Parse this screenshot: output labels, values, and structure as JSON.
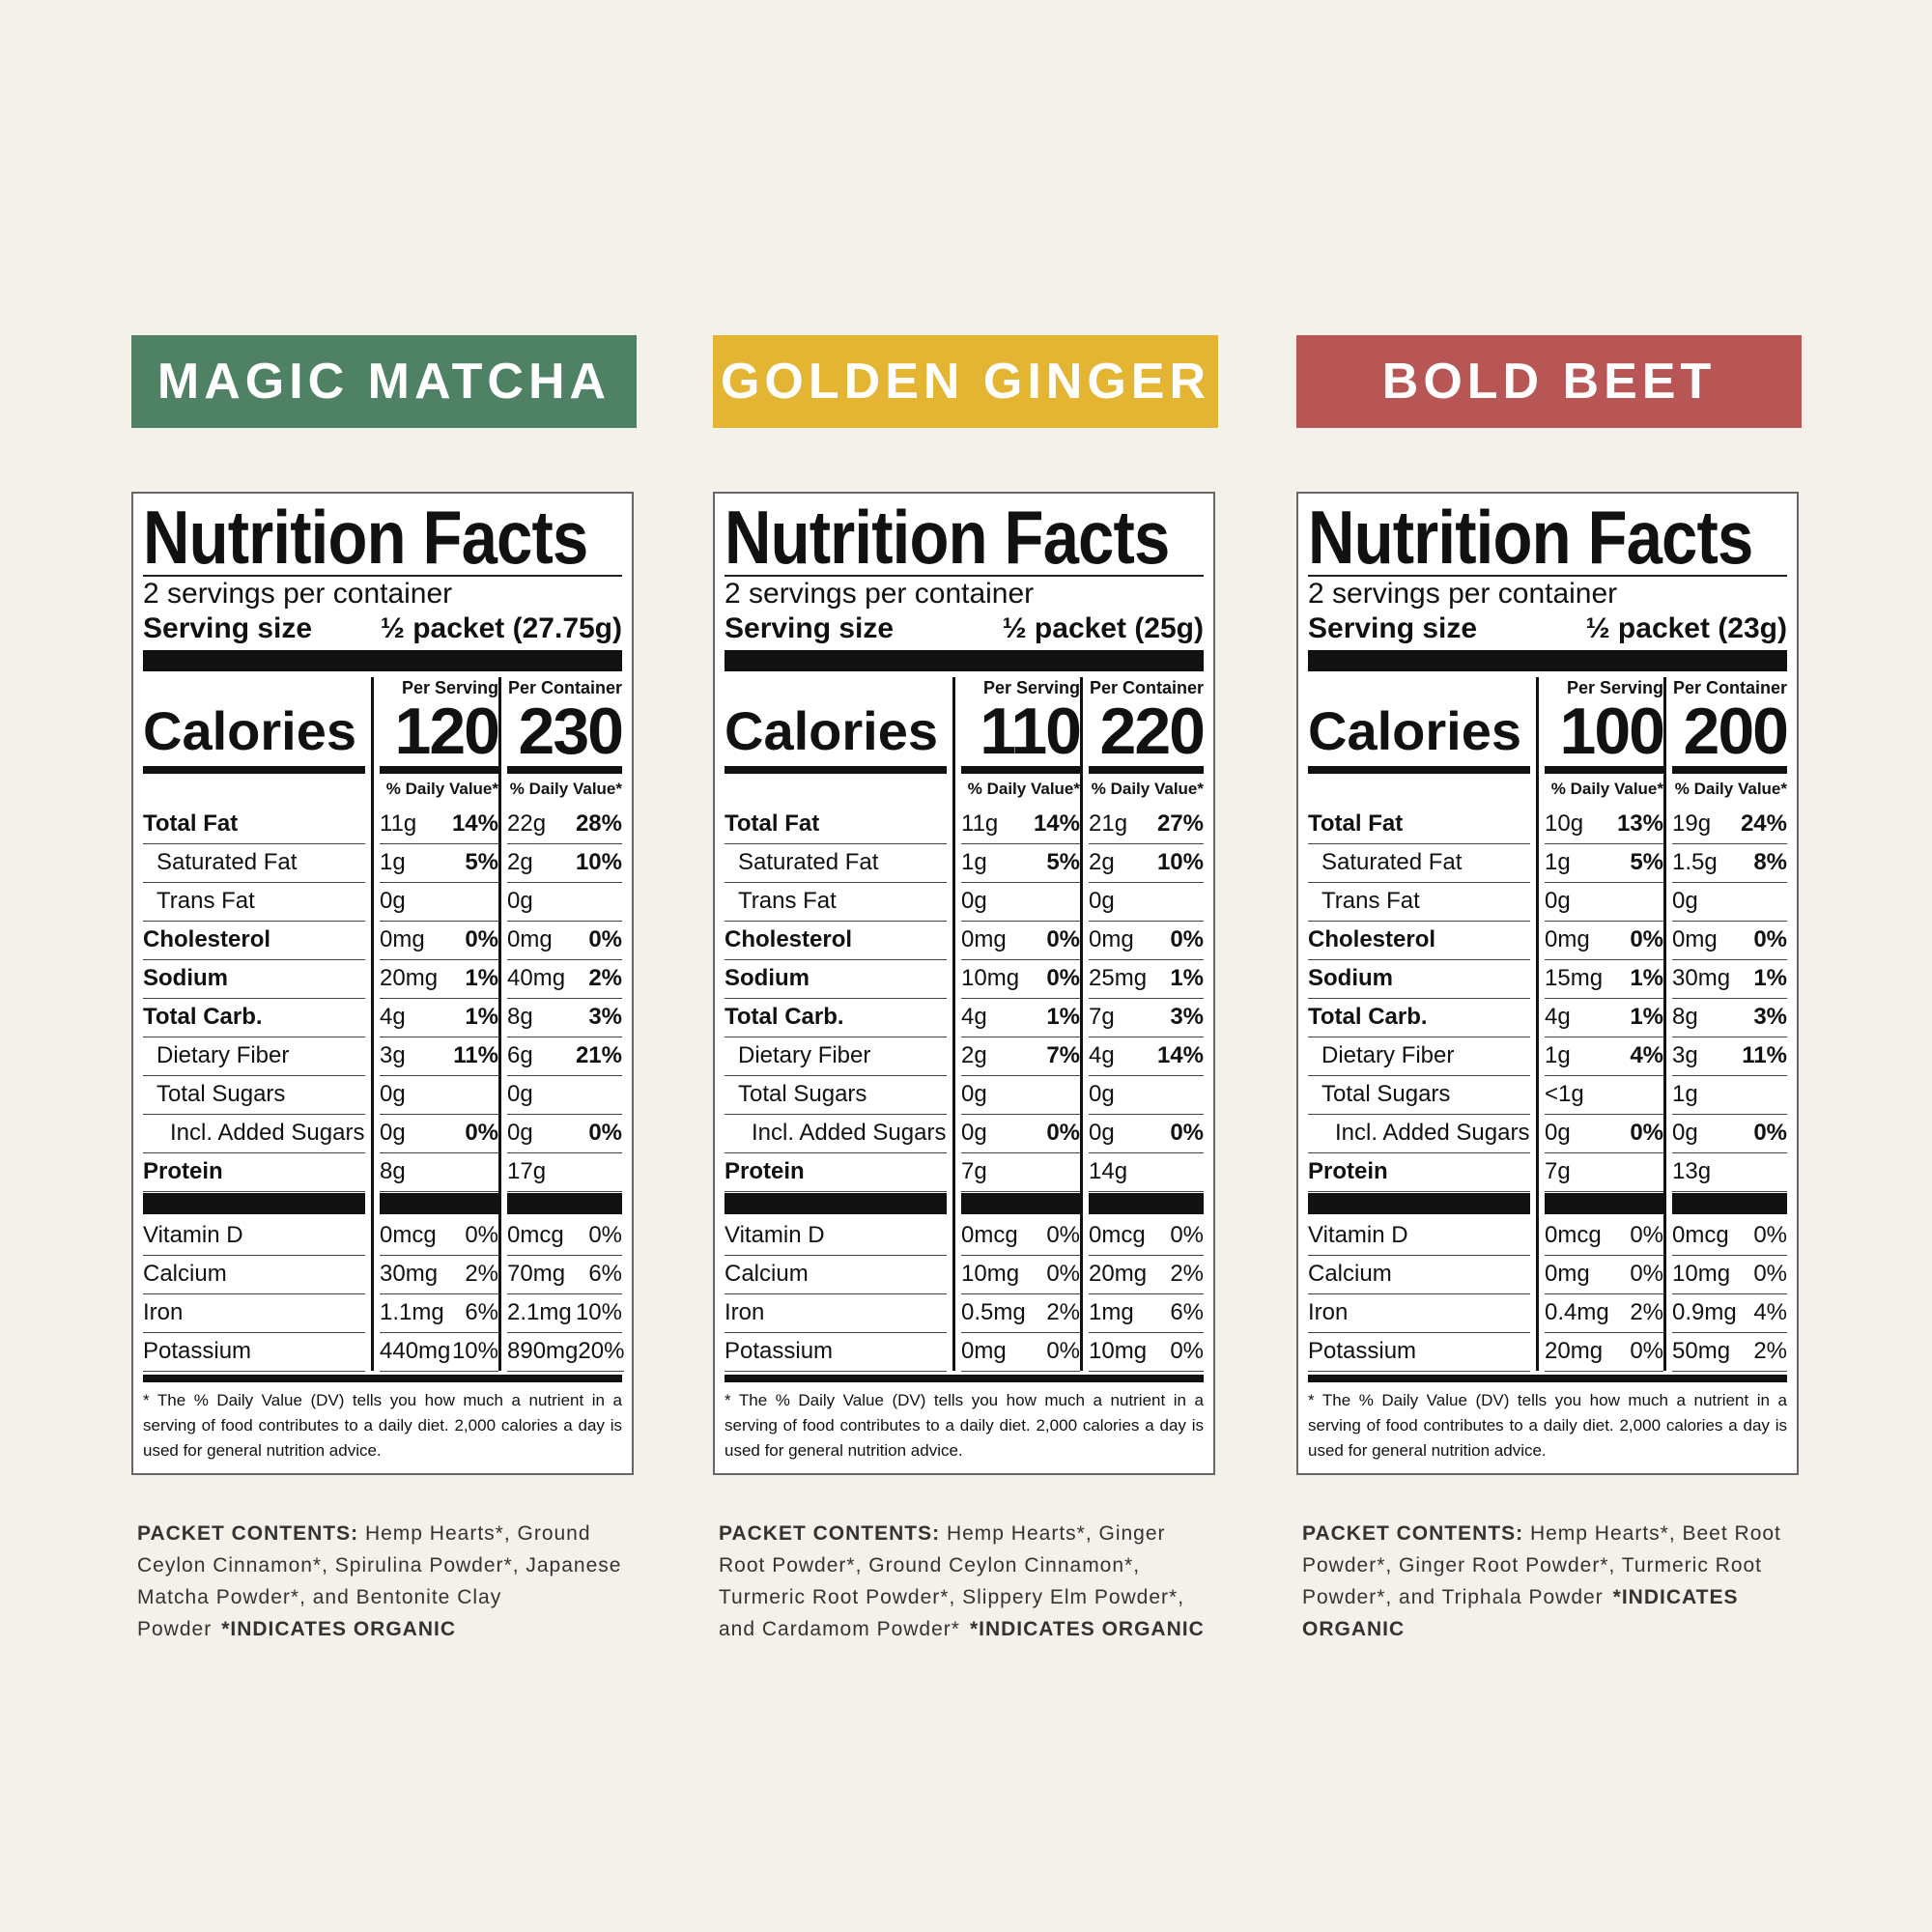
{
  "panels": [
    {
      "title": "MAGIC MATCHA",
      "label": {
        "heading": "Nutrition Facts",
        "servings": "2 servings per container",
        "serving_size_label": "Serving size",
        "serving_size": "½ packet (27.75g)",
        "columns": [
          "Per Serving",
          "Per Container"
        ],
        "calories_label": "Calories",
        "calories": [
          "120",
          "230"
        ],
        "daily_value_header": "% Daily Value*",
        "nutrients": [
          {
            "name": "Total Fat",
            "per_serving": {
              "amount": "11g",
              "dv": "14%"
            },
            "per_container": {
              "amount": "22g",
              "dv": "28%"
            }
          },
          {
            "name": "Saturated Fat",
            "per_serving": {
              "amount": "1g",
              "dv": "5%"
            },
            "per_container": {
              "amount": "2g",
              "dv": "10%"
            }
          },
          {
            "name": "Trans Fat",
            "per_serving": {
              "amount": "0g"
            },
            "per_container": {
              "amount": "0g"
            }
          },
          {
            "name": "Cholesterol",
            "per_serving": {
              "amount": "0mg",
              "dv": "0%"
            },
            "per_container": {
              "amount": "0mg",
              "dv": "0%"
            }
          },
          {
            "name": "Sodium",
            "per_serving": {
              "amount": "20mg",
              "dv": "1%"
            },
            "per_container": {
              "amount": "40mg",
              "dv": "2%"
            }
          },
          {
            "name": "Total Carb.",
            "per_serving": {
              "amount": "4g",
              "dv": "1%"
            },
            "per_container": {
              "amount": "8g",
              "dv": "3%"
            }
          },
          {
            "name": "Dietary Fiber",
            "per_serving": {
              "amount": "3g",
              "dv": "11%"
            },
            "per_container": {
              "amount": "6g",
              "dv": "21%"
            }
          },
          {
            "name": "Total Sugars",
            "per_serving": {
              "amount": "0g"
            },
            "per_container": {
              "amount": "0g"
            }
          },
          {
            "name": "Incl. Added Sugars",
            "per_serving": {
              "amount": "0g",
              "dv": "0%"
            },
            "per_container": {
              "amount": "0g",
              "dv": "0%"
            }
          },
          {
            "name": "Protein",
            "per_serving": {
              "amount": "8g"
            },
            "per_container": {
              "amount": "17g"
            }
          }
        ],
        "vitamins": [
          {
            "name": "Vitamin D",
            "per_serving": {
              "amount": "0mcg",
              "dv": "0%"
            },
            "per_container": {
              "amount": "0mcg",
              "dv": "0%"
            }
          },
          {
            "name": "Calcium",
            "per_serving": {
              "amount": "30mg",
              "dv": "2%"
            },
            "per_container": {
              "amount": "70mg",
              "dv": "6%"
            }
          },
          {
            "name": "Iron",
            "per_serving": {
              "amount": "1.1mg",
              "dv": "6%"
            },
            "per_container": {
              "amount": "2.1mg",
              "dv": "10%"
            }
          },
          {
            "name": "Potassium",
            "per_serving": {
              "amount": "440mg",
              "dv": "10%"
            },
            "per_container": {
              "amount": "890mg",
              "dv": "20%"
            }
          }
        ],
        "footnote": "* The % Daily Value (DV) tells you how much a nutrient in a serving of food contributes to a daily diet. 2,000 calories a day is used for general nutrition advice."
      },
      "contents": {
        "label": "PACKET CONTENTS:",
        "text": "Hemp Hearts*, Ground Ceylon Cinnamon*, Spirulina Powder*, Japanese Matcha Powder*, and Bentonite Clay Powder",
        "note": "*INDICATES ORGANIC"
      }
    },
    {
      "title": "GOLDEN GINGER",
      "label": {
        "heading": "Nutrition Facts",
        "servings": "2 servings per container",
        "serving_size_label": "Serving size",
        "serving_size": "½ packet (25g)",
        "columns": [
          "Per Serving",
          "Per Container"
        ],
        "calories_label": "Calories",
        "calories": [
          "110",
          "220"
        ],
        "daily_value_header": "% Daily Value*",
        "nutrients": [
          {
            "name": "Total Fat",
            "per_serving": {
              "amount": "11g",
              "dv": "14%"
            },
            "per_container": {
              "amount": "21g",
              "dv": "27%"
            }
          },
          {
            "name": "Saturated Fat",
            "per_serving": {
              "amount": "1g",
              "dv": "5%"
            },
            "per_container": {
              "amount": "2g",
              "dv": "10%"
            }
          },
          {
            "name": "Trans Fat",
            "per_serving": {
              "amount": "0g"
            },
            "per_container": {
              "amount": "0g"
            }
          },
          {
            "name": "Cholesterol",
            "per_serving": {
              "amount": "0mg",
              "dv": "0%"
            },
            "per_container": {
              "amount": "0mg",
              "dv": "0%"
            }
          },
          {
            "name": "Sodium",
            "per_serving": {
              "amount": "10mg",
              "dv": "0%"
            },
            "per_container": {
              "amount": "25mg",
              "dv": "1%"
            }
          },
          {
            "name": "Total Carb.",
            "per_serving": {
              "amount": "4g",
              "dv": "1%"
            },
            "per_container": {
              "amount": "7g",
              "dv": "3%"
            }
          },
          {
            "name": "Dietary Fiber",
            "per_serving": {
              "amount": "2g",
              "dv": "7%"
            },
            "per_container": {
              "amount": "4g",
              "dv": "14%"
            }
          },
          {
            "name": "Total Sugars",
            "per_serving": {
              "amount": "0g"
            },
            "per_container": {
              "amount": "0g"
            }
          },
          {
            "name": "Incl. Added Sugars",
            "per_serving": {
              "amount": "0g",
              "dv": "0%"
            },
            "per_container": {
              "amount": "0g",
              "dv": "0%"
            }
          },
          {
            "name": "Protein",
            "per_serving": {
              "amount": "7g"
            },
            "per_container": {
              "amount": "14g"
            }
          }
        ],
        "vitamins": [
          {
            "name": "Vitamin D",
            "per_serving": {
              "amount": "0mcg",
              "dv": "0%"
            },
            "per_container": {
              "amount": "0mcg",
              "dv": "0%"
            }
          },
          {
            "name": "Calcium",
            "per_serving": {
              "amount": "10mg",
              "dv": "0%"
            },
            "per_container": {
              "amount": "20mg",
              "dv": "2%"
            }
          },
          {
            "name": "Iron",
            "per_serving": {
              "amount": "0.5mg",
              "dv": "2%"
            },
            "per_container": {
              "amount": "1mg",
              "dv": "6%"
            }
          },
          {
            "name": "Potassium",
            "per_serving": {
              "amount": "0mg",
              "dv": "0%"
            },
            "per_container": {
              "amount": "10mg",
              "dv": "0%"
            }
          }
        ],
        "footnote": "* The % Daily Value (DV) tells you how much a nutrient in a serving of food contributes to a daily diet. 2,000 calories a day is used for general nutrition advice."
      },
      "contents": {
        "label": "PACKET CONTENTS:",
        "text": "Hemp Hearts*, Ginger Root Powder*, Ground Ceylon Cinnamon*, Turmeric Root Powder*, Slippery Elm Powder*, and Cardamom Powder*",
        "note": "*INDICATES ORGANIC"
      }
    },
    {
      "title": "BOLD BEET",
      "label": {
        "heading": "Nutrition Facts",
        "servings": "2 servings per container",
        "serving_size_label": "Serving size",
        "serving_size": "½ packet (23g)",
        "columns": [
          "Per Serving",
          "Per Container"
        ],
        "calories_label": "Calories",
        "calories": [
          "100",
          "200"
        ],
        "daily_value_header": "% Daily Value*",
        "nutrients": [
          {
            "name": "Total Fat",
            "per_serving": {
              "amount": "10g",
              "dv": "13%"
            },
            "per_container": {
              "amount": "19g",
              "dv": "24%"
            }
          },
          {
            "name": "Saturated Fat",
            "per_serving": {
              "amount": "1g",
              "dv": "5%"
            },
            "per_container": {
              "amount": "1.5g",
              "dv": "8%"
            }
          },
          {
            "name": "Trans Fat",
            "per_serving": {
              "amount": "0g"
            },
            "per_container": {
              "amount": "0g"
            }
          },
          {
            "name": "Cholesterol",
            "per_serving": {
              "amount": "0mg",
              "dv": "0%"
            },
            "per_container": {
              "amount": "0mg",
              "dv": "0%"
            }
          },
          {
            "name": "Sodium",
            "per_serving": {
              "amount": "15mg",
              "dv": "1%"
            },
            "per_container": {
              "amount": "30mg",
              "dv": "1%"
            }
          },
          {
            "name": "Total Carb.",
            "per_serving": {
              "amount": "4g",
              "dv": "1%"
            },
            "per_container": {
              "amount": "8g",
              "dv": "3%"
            }
          },
          {
            "name": "Dietary Fiber",
            "per_serving": {
              "amount": "1g",
              "dv": "4%"
            },
            "per_container": {
              "amount": "3g",
              "dv": "11%"
            }
          },
          {
            "name": "Total Sugars",
            "per_serving": {
              "amount": "<1g"
            },
            "per_container": {
              "amount": "1g"
            }
          },
          {
            "name": "Incl. Added Sugars",
            "per_serving": {
              "amount": "0g",
              "dv": "0%"
            },
            "per_container": {
              "amount": "0g",
              "dv": "0%"
            }
          },
          {
            "name": "Protein",
            "per_serving": {
              "amount": "7g"
            },
            "per_container": {
              "amount": "13g"
            }
          }
        ],
        "vitamins": [
          {
            "name": "Vitamin D",
            "per_serving": {
              "amount": "0mcg",
              "dv": "0%"
            },
            "per_container": {
              "amount": "0mcg",
              "dv": "0%"
            }
          },
          {
            "name": "Calcium",
            "per_serving": {
              "amount": "0mg",
              "dv": "0%"
            },
            "per_container": {
              "amount": "10mg",
              "dv": "0%"
            }
          },
          {
            "name": "Iron",
            "per_serving": {
              "amount": "0.4mg",
              "dv": "2%"
            },
            "per_container": {
              "amount": "0.9mg",
              "dv": "4%"
            }
          },
          {
            "name": "Potassium",
            "per_serving": {
              "amount": "20mg",
              "dv": "0%"
            },
            "per_container": {
              "amount": "50mg",
              "dv": "2%"
            }
          }
        ],
        "footnote": "* The % Daily Value (DV) tells you how much a nutrient in a serving of food contributes to a daily diet. 2,000 calories a day is used for general nutrition advice."
      },
      "contents": {
        "label": "PACKET CONTENTS:",
        "text": "Hemp Hearts*, Beet Root Powder*, Ginger Root Powder*, Turmeric Root Powder*, and Triphala Powder",
        "note": "*INDICATES ORGANIC"
      }
    }
  ]
}
